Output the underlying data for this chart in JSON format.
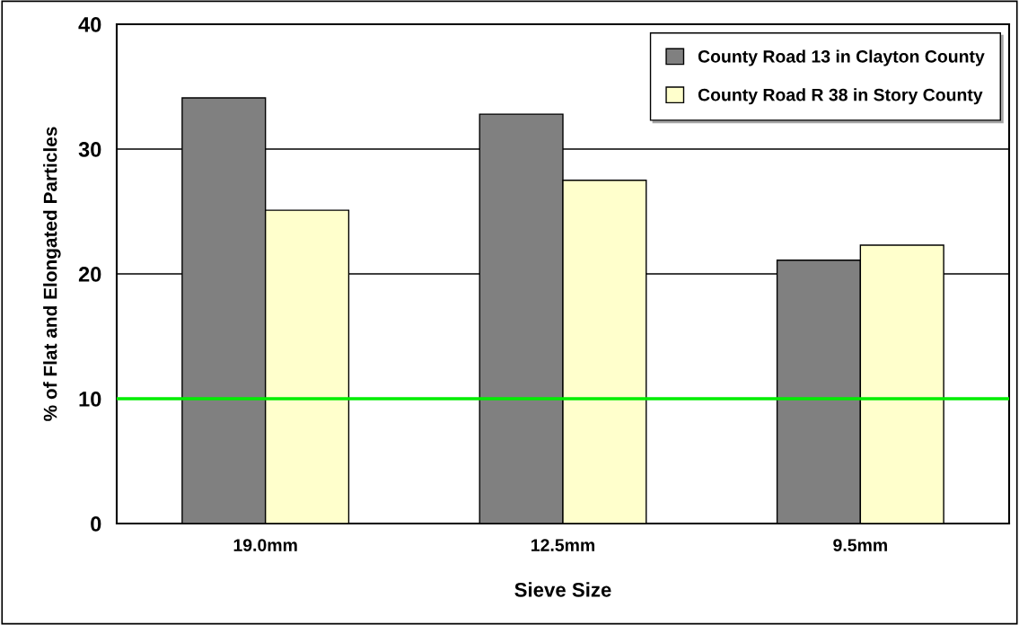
{
  "chart_data": {
    "type": "bar",
    "xlabel": "Sieve Size",
    "ylabel": "% of Flat and Elongated Particles",
    "categories": [
      "19.0mm",
      "12.5mm",
      "9.5mm"
    ],
    "series": [
      {
        "name": "County Road 13 in Clayton County",
        "color": "#808080",
        "values": [
          34.1,
          32.8,
          21.1
        ]
      },
      {
        "name": "County Road R 38 in Story County",
        "color": "#ffffcc",
        "values": [
          25.1,
          27.5,
          22.3
        ]
      }
    ],
    "ylim": [
      0,
      40
    ],
    "yticks": [
      0,
      10,
      20,
      30,
      40
    ],
    "ref_lines": [
      {
        "axis": "y",
        "value": 10,
        "color": "#00ee00"
      }
    ],
    "grid": "y",
    "legend": "top right"
  }
}
